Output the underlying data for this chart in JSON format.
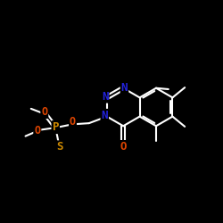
{
  "bg_color": "#000000",
  "bond_color": "#ffffff",
  "atom_colors": {
    "N": "#2222dd",
    "O": "#dd4400",
    "S": "#cc8800",
    "P": "#cc8800"
  },
  "figsize": [
    2.5,
    2.5
  ],
  "dpi": 100
}
